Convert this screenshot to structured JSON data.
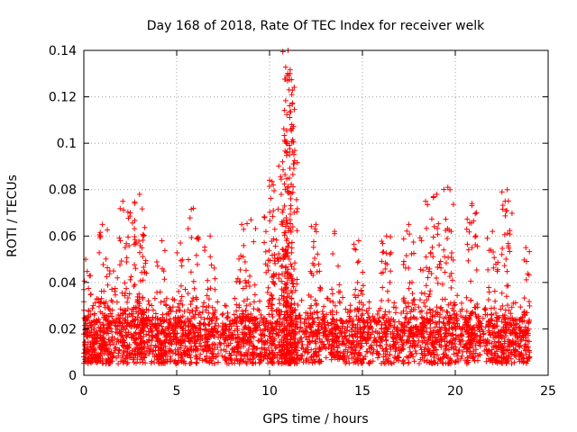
{
  "chart_data": {
    "type": "scatter",
    "title": "Day 168 of 2018, Rate Of TEC Index for receiver welk",
    "xlabel": "GPS time / hours",
    "ylabel": "ROTI / TECUs",
    "xlim": [
      0,
      25
    ],
    "ylim": [
      0,
      0.14
    ],
    "x_ticks": [
      0,
      5,
      10,
      15,
      20,
      25
    ],
    "x_tick_labels": [
      "0",
      "5",
      "10",
      "15",
      "20",
      "25"
    ],
    "y_ticks": [
      0,
      0.02,
      0.04,
      0.06,
      0.08,
      0.1,
      0.12,
      0.14
    ],
    "y_tick_labels": [
      "0",
      "0.02",
      "0.04",
      "0.06",
      "0.08",
      "0.1",
      "0.12",
      "0.14"
    ],
    "grid": true,
    "marker": "+",
    "color": "#ff0000",
    "x_data_range": [
      0,
      24
    ],
    "baseline_band": [
      0.005,
      0.025
    ],
    "series": [
      {
        "name": "ROTI",
        "note": "dense scatter; representative peak points listed",
        "x": [
          0.1,
          0.5,
          1.0,
          1.4,
          2.1,
          2.5,
          3.0,
          3.2,
          4.2,
          5.2,
          5.9,
          6.8,
          8.5,
          9.0,
          10.0,
          10.2,
          10.7,
          10.9,
          11.0,
          11.05,
          11.1,
          11.2,
          12.5,
          13.5,
          14.8,
          16.3,
          17.5,
          18.4,
          19.0,
          19.6,
          20.9,
          22.0,
          22.8,
          23.8
        ],
        "y": [
          0.05,
          0.03,
          0.065,
          0.045,
          0.075,
          0.07,
          0.078,
          0.06,
          0.058,
          0.057,
          0.072,
          0.06,
          0.065,
          0.067,
          0.084,
          0.082,
          0.092,
          0.1,
          0.14,
          0.123,
          0.13,
          0.108,
          0.065,
          0.062,
          0.058,
          0.06,
          0.065,
          0.075,
          0.078,
          0.081,
          0.074,
          0.062,
          0.08,
          0.055
        ]
      }
    ]
  }
}
